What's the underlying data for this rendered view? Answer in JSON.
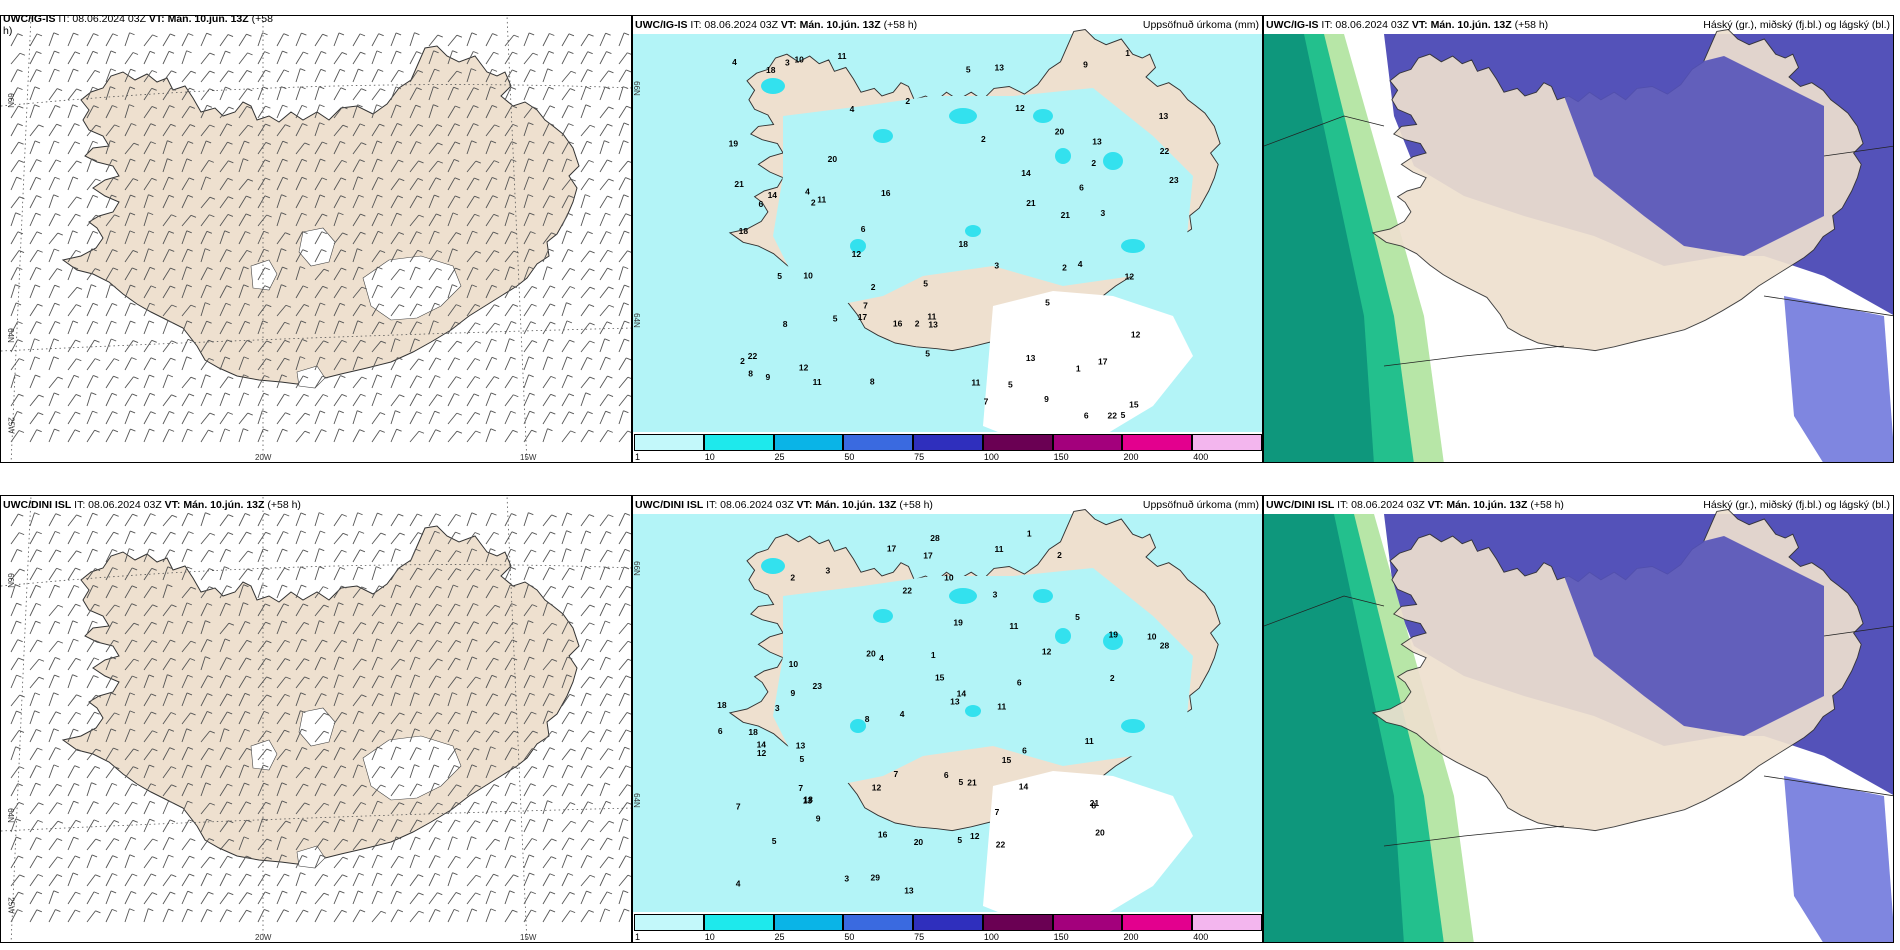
{
  "colors": {
    "land": "#eee0cf",
    "precip_light": "#b3f4f7",
    "precip_mid": "#33e1ee",
    "cloud_high_dark": "#0a8f79",
    "cloud_high_mid": "#23c08d",
    "cloud_high_light": "#b7e6a7",
    "cloud_mid": "#5452b9",
    "cloud_mid_light": "#7f86e0"
  },
  "colorbar": {
    "ticks": [
      "1",
      "10",
      "25",
      "50",
      "75",
      "100",
      "150",
      "200",
      "400"
    ],
    "colors": [
      "#c3f8fa",
      "#1ee9ec",
      "#0ab4e7",
      "#3a6ae0",
      "#2f2fbd",
      "#6a0053",
      "#a3007c",
      "#e3008e",
      "#f3b6ee"
    ]
  },
  "rows": [
    {
      "model": "UWC/IG-IS",
      "wind": {
        "title_left": "UWC/IG-IS",
        "title_rest": " IT: 08.06.2024 03Z ",
        "vt_label": "VT: Mán. 10.jún. 13Z",
        "lead": " (+58",
        "lead_wrap": "h)"
      },
      "precip": {
        "title_left": "UWC/IG-IS",
        "title_rest": " IT: 08.06.2024 03Z ",
        "vt_label": "VT: Mán. 10.jún. 13Z",
        "lead": " (+58 h)",
        "right": "Uppsöfnuð úrkoma (mm)",
        "numbers": [
          "5",
          "2",
          "3",
          "4",
          "5",
          "4",
          "2",
          "12",
          "17",
          "21",
          "3",
          "5",
          "4",
          "6",
          "6",
          "13",
          "18",
          "23",
          "13",
          "16",
          "22",
          "11",
          "5",
          "5",
          "17",
          "21",
          "11",
          "22",
          "13",
          "2",
          "7",
          "16",
          "9",
          "12",
          "20",
          "21",
          "14",
          "10",
          "10",
          "8",
          "18",
          "15",
          "12",
          "9",
          "13",
          "8",
          "11",
          "20",
          "11",
          "12",
          "7",
          "6",
          "3",
          "9",
          "22",
          "14",
          "11",
          "18",
          "8",
          "12",
          "13",
          "2",
          "19",
          "2",
          "1",
          "6",
          "1",
          "2",
          "5",
          "2",
          "5",
          "4",
          "5",
          "2"
        ]
      },
      "cloud": {
        "title_left": "UWC/IG-IS",
        "title_rest": " IT: 08.06.2024 03Z ",
        "vt_label": "VT: Mán. 10.jún. 13Z",
        "lead": " (+58 h)",
        "right": "Háský (gr.), miðský (fj.bl.) og lágský (bl.)"
      }
    },
    {
      "model": "UWC/DINI ISL",
      "wind": {
        "title_left": "UWC/DINI ISL",
        "title_rest": " IT: 08.06.2024 03Z ",
        "vt_label": "VT: Mán. 10.jún. 13Z",
        "lead": " (+58 h)",
        "lead_wrap": ""
      },
      "precip": {
        "title_left": "UWC/DINI ISL",
        "title_rest": " IT: 08.06.2024 03Z ",
        "vt_label": "VT: Mán. 10.jún. 13Z",
        "lead": " (+58 h)",
        "right": "Uppsöfnuð úrkoma (mm)",
        "numbers": [
          "5",
          "2",
          "3",
          "5",
          "5",
          "23",
          "5",
          "18",
          "19",
          "12",
          "18",
          "28",
          "14",
          "13",
          "13",
          "17",
          "20",
          "18",
          "13",
          "29",
          "22",
          "17",
          "22",
          "14",
          "15",
          "16",
          "14",
          "11",
          "19",
          "6",
          "10",
          "9",
          "12",
          "6",
          "8",
          "12",
          "10",
          "11",
          "11",
          "11",
          "28",
          "10",
          "20",
          "13",
          "6",
          "9",
          "15",
          "5",
          "12",
          "7",
          "4",
          "3",
          "1",
          "2",
          "8",
          "21",
          "20",
          "21",
          "2",
          "3",
          "4",
          "1",
          "3",
          "4",
          "7",
          "7",
          "7",
          "6"
        ]
      },
      "cloud": {
        "title_left": "UWC/DINI ISL",
        "title_rest": " IT: 08.06.2024 03Z ",
        "vt_label": "VT: Mán. 10.jún. 13Z",
        "lead": " (+58 h)",
        "right": "Háský (gr.), miðský (fj.bl.) og lágský (bl.)"
      }
    }
  ],
  "grid_labels": {
    "lat66": "66N",
    "lat64": "64N",
    "lon25": "25W",
    "lon20": "20W",
    "lon15": "15W"
  }
}
